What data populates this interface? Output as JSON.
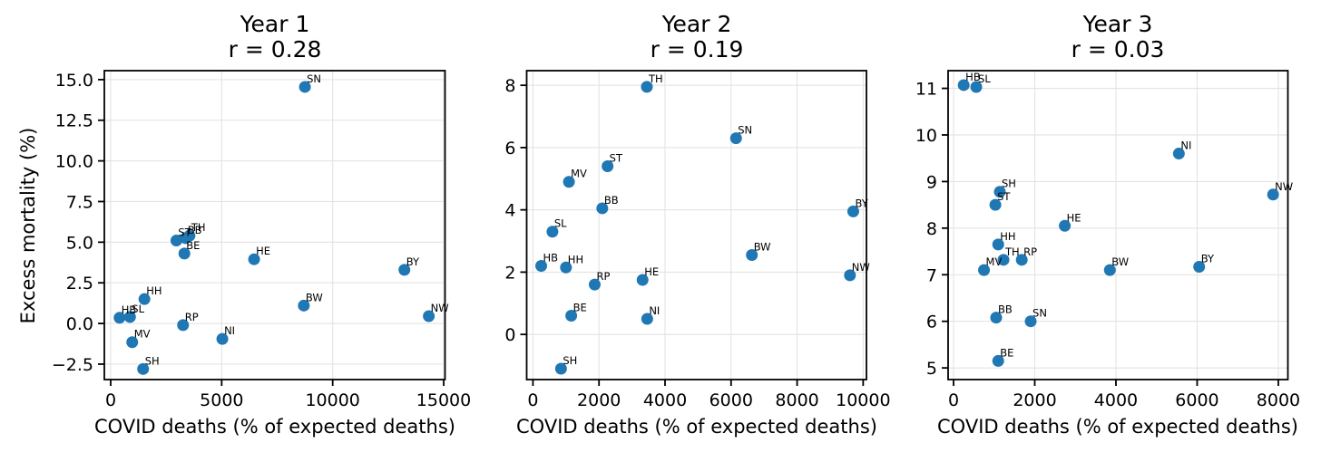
{
  "figure": {
    "ylabel": "Excess mortality (%)",
    "xlabel": "COVID deaths (% of expected deaths)",
    "dot_color": "#1f77b4",
    "grid_color": "#e3e3e3",
    "axis_color": "#000000"
  },
  "chart_data": [
    {
      "type": "scatter",
      "title": "Year 1",
      "subtitle": "r = 0.28",
      "r": 0.28,
      "xlabel": "COVID deaths (% of expected deaths)",
      "ylabel": "Excess mortality (%)",
      "grid": true,
      "xlim": [
        -286,
        15060
      ],
      "ylim": [
        -3.45,
        15.55
      ],
      "xtick_values": [
        0,
        5000,
        10000,
        15000
      ],
      "xtick_labels": [
        "0",
        "5000",
        "10000",
        "15000"
      ],
      "ytick_values": [
        15.0,
        12.5,
        10.0,
        7.5,
        5.0,
        2.5,
        0.0,
        -2.5
      ],
      "ytick_labels": [
        "15.0",
        "12.5",
        "10.0",
        "7.5",
        "5.0",
        "2.5",
        "0.0",
        "−2.5"
      ],
      "points": [
        {
          "label": "SN",
          "x": 8750,
          "y": 14.55
        },
        {
          "label": "TH",
          "x": 3550,
          "y": 5.4
        },
        {
          "label": "BB",
          "x": 3380,
          "y": 5.25
        },
        {
          "label": "ST",
          "x": 2960,
          "y": 5.1
        },
        {
          "label": "BE",
          "x": 3320,
          "y": 4.3
        },
        {
          "label": "HE",
          "x": 6460,
          "y": 3.95
        },
        {
          "label": "BY",
          "x": 13230,
          "y": 3.3
        },
        {
          "label": "HH",
          "x": 1520,
          "y": 1.5
        },
        {
          "label": "BW",
          "x": 8700,
          "y": 1.1
        },
        {
          "label": "NW",
          "x": 14330,
          "y": 0.45
        },
        {
          "label": "SL",
          "x": 870,
          "y": 0.4
        },
        {
          "label": "HB",
          "x": 400,
          "y": 0.35
        },
        {
          "label": "RP",
          "x": 3260,
          "y": -0.1
        },
        {
          "label": "NI",
          "x": 5030,
          "y": -0.95
        },
        {
          "label": "MV",
          "x": 970,
          "y": -1.15
        },
        {
          "label": "SH",
          "x": 1460,
          "y": -2.8
        }
      ]
    },
    {
      "type": "scatter",
      "title": "Year 2",
      "subtitle": "r = 0.19",
      "r": 0.19,
      "xlabel": "COVID deaths (% of expected deaths)",
      "ylabel": "Excess mortality (%)",
      "grid": true,
      "xlim": [
        -190,
        10100
      ],
      "ylim": [
        -1.45,
        8.47
      ],
      "xtick_values": [
        0,
        2000,
        4000,
        6000,
        8000,
        10000
      ],
      "xtick_labels": [
        "0",
        "2000",
        "4000",
        "6000",
        "8000",
        "10000"
      ],
      "ytick_values": [
        8,
        6,
        4,
        2,
        0
      ],
      "ytick_labels": [
        "8",
        "6",
        "4",
        "2",
        "0"
      ],
      "points": [
        {
          "label": "TH",
          "x": 3450,
          "y": 7.95
        },
        {
          "label": "SN",
          "x": 6150,
          "y": 6.3
        },
        {
          "label": "ST",
          "x": 2260,
          "y": 5.4
        },
        {
          "label": "MV",
          "x": 1090,
          "y": 4.9
        },
        {
          "label": "BB",
          "x": 2100,
          "y": 4.05
        },
        {
          "label": "BY",
          "x": 9700,
          "y": 3.95
        },
        {
          "label": "SL",
          "x": 590,
          "y": 3.3
        },
        {
          "label": "BW",
          "x": 6630,
          "y": 2.55
        },
        {
          "label": "HB",
          "x": 250,
          "y": 2.2
        },
        {
          "label": "HH",
          "x": 1000,
          "y": 2.15
        },
        {
          "label": "NW",
          "x": 9600,
          "y": 1.9
        },
        {
          "label": "HE",
          "x": 3320,
          "y": 1.75
        },
        {
          "label": "RP",
          "x": 1870,
          "y": 1.6
        },
        {
          "label": "BE",
          "x": 1160,
          "y": 0.6
        },
        {
          "label": "NI",
          "x": 3460,
          "y": 0.5
        },
        {
          "label": "SH",
          "x": 850,
          "y": -1.1
        }
      ]
    },
    {
      "type": "scatter",
      "title": "Year 3",
      "subtitle": "r = 0.03",
      "r": 0.03,
      "xlabel": "COVID deaths (% of expected deaths)",
      "ylabel": "Excess mortality (%)",
      "grid": true,
      "xlim": [
        -134,
        8235
      ],
      "ylim": [
        4.75,
        11.38
      ],
      "xtick_values": [
        0,
        2000,
        4000,
        6000,
        8000
      ],
      "xtick_labels": [
        "0",
        "2000",
        "4000",
        "6000",
        "8000"
      ],
      "ytick_values": [
        11,
        10,
        9,
        8,
        7,
        6,
        5
      ],
      "ytick_labels": [
        "11",
        "10",
        "9",
        "8",
        "7",
        "6",
        "5"
      ],
      "points": [
        {
          "label": "HB",
          "x": 250,
          "y": 11.07
        },
        {
          "label": "SL",
          "x": 560,
          "y": 11.03
        },
        {
          "label": "NI",
          "x": 5550,
          "y": 9.6
        },
        {
          "label": "SH",
          "x": 1140,
          "y": 8.78
        },
        {
          "label": "NW",
          "x": 7870,
          "y": 8.72
        },
        {
          "label": "ST",
          "x": 1030,
          "y": 8.5
        },
        {
          "label": "HE",
          "x": 2740,
          "y": 8.05
        },
        {
          "label": "HH",
          "x": 1100,
          "y": 7.65
        },
        {
          "label": "TH",
          "x": 1230,
          "y": 7.32
        },
        {
          "label": "RP",
          "x": 1680,
          "y": 7.32
        },
        {
          "label": "BY",
          "x": 6050,
          "y": 7.17
        },
        {
          "label": "MV",
          "x": 750,
          "y": 7.1
        },
        {
          "label": "BW",
          "x": 3850,
          "y": 7.1
        },
        {
          "label": "BB",
          "x": 1050,
          "y": 6.08
        },
        {
          "label": "SN",
          "x": 1900,
          "y": 6.0
        },
        {
          "label": "BE",
          "x": 1100,
          "y": 5.15
        }
      ]
    }
  ]
}
